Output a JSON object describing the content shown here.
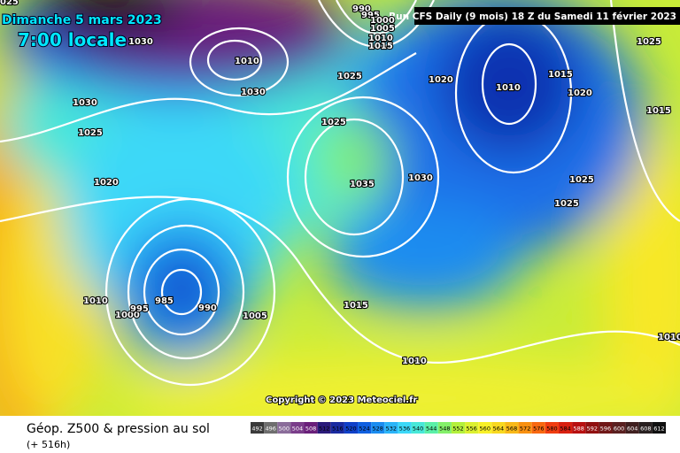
{
  "header": {
    "date": "Dimanche 5 mars 2023",
    "time": "7:00 locale",
    "run": "Run CFS Daily (9 mois) 18 Z du Samedi 11 février 2023"
  },
  "copyright": "Copyright © 2023 Meteociel.fr",
  "footer": {
    "title": "Géop. Z500 & pression au sol",
    "lead": "(+ 516h)"
  },
  "isobar_labels": [
    "025",
    1030,
    1010,
    1030,
    990,
    995,
    1000,
    1005,
    1010,
    1015,
    1025,
    1020,
    1010,
    1015,
    1020,
    1025,
    1015,
    1030,
    1025,
    1025,
    1020,
    1035,
    1030,
    1025,
    1025,
    1010,
    1000,
    995,
    985,
    990,
    1005,
    1015,
    1010,
    1010
  ],
  "legend": {
    "labels": [
      492,
      496,
      500,
      504,
      508,
      512,
      516,
      520,
      524,
      528,
      532,
      536,
      540,
      544,
      548,
      552,
      556,
      560,
      564,
      568,
      572,
      576,
      580,
      584,
      588,
      592,
      596,
      600,
      604,
      608,
      612
    ],
    "colors": [
      "#3a3a3a",
      "#6e6e6e",
      "#8a6c9a",
      "#7a3d8a",
      "#6a1f7a",
      "#2a1a7a",
      "#1a2aa0",
      "#1040c8",
      "#1060e0",
      "#1a8cf0",
      "#2ab4f8",
      "#3cd8f8",
      "#48e8d8",
      "#5af0a8",
      "#84f06a",
      "#b4f03c",
      "#dcf030",
      "#f8f028",
      "#f8d820",
      "#f8b818",
      "#f89010",
      "#f86810",
      "#f03c10",
      "#d82010",
      "#b81010",
      "#901010",
      "#701818",
      "#5a2020",
      "#402020",
      "#282020",
      "#101010"
    ]
  }
}
